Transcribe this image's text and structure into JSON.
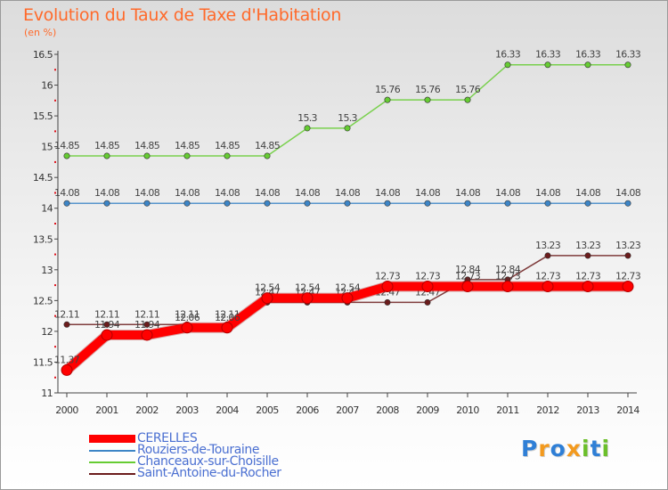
{
  "chart_data": {
    "type": "line",
    "title": "Evolution du Taux de Taxe d'Habitation",
    "subtitle": "(en %)",
    "xlabel": "",
    "ylabel": "(en %)",
    "ylim": [
      11,
      16.5
    ],
    "y_ticks": [
      "11",
      "11.5",
      "12",
      "12.5",
      "13",
      "13.5",
      "14",
      "14.5",
      "15",
      "15.5",
      "16",
      "16.5"
    ],
    "x": [
      "2000",
      "2001",
      "2002",
      "2003",
      "2004",
      "2005",
      "2006",
      "2007",
      "2008",
      "2009",
      "2010",
      "2011",
      "2012",
      "2013",
      "2014"
    ],
    "grid": false,
    "legend_position": "bottom-left",
    "series": [
      {
        "name": "CERELLES",
        "color": "#ff0000",
        "values": [
          11.37,
          11.94,
          11.94,
          12.06,
          12.06,
          12.54,
          12.54,
          12.54,
          12.73,
          12.73,
          12.73,
          12.73,
          12.73,
          12.73,
          12.73
        ],
        "labels": [
          "11.37",
          "11.94",
          "11.94",
          "12.06",
          "12.06",
          "12.54",
          "12.54",
          "12.54",
          "12.73",
          "12.73",
          "12.73",
          "12.73",
          "12.73",
          "12.73",
          "12.73"
        ]
      },
      {
        "name": "Rouziers-de-Touraine",
        "color": "#3d85c6",
        "values": [
          14.08,
          14.08,
          14.08,
          14.08,
          14.08,
          14.08,
          14.08,
          14.08,
          14.08,
          14.08,
          14.08,
          14.08,
          14.08,
          14.08,
          14.08
        ],
        "labels": [
          "14.08",
          "14.08",
          "14.08",
          "14.08",
          "14.08",
          "14.08",
          "14.08",
          "14.08",
          "14.08",
          "14.08",
          "14.08",
          "14.08",
          "14.08",
          "14.08",
          "14.08"
        ]
      },
      {
        "name": "Chanceaux-sur-Choisille",
        "color": "#66cc33",
        "values": [
          14.85,
          14.85,
          14.85,
          14.85,
          14.85,
          14.85,
          15.3,
          15.3,
          15.76,
          15.76,
          15.76,
          16.33,
          16.33,
          16.33,
          16.33
        ],
        "labels": [
          "14.85",
          "14.85",
          "14.85",
          "14.85",
          "14.85",
          "14.85",
          "15.3",
          "15.3",
          "15.76",
          "15.76",
          "15.76",
          "16.33",
          "16.33",
          "16.33",
          "16.33"
        ]
      },
      {
        "name": "Saint-Antoine-du-Rocher",
        "color": "#6b1c1c",
        "values": [
          12.11,
          12.11,
          12.11,
          12.11,
          12.11,
          12.47,
          12.47,
          12.47,
          12.47,
          12.47,
          12.84,
          12.84,
          13.23,
          13.23,
          13.23
        ],
        "labels": [
          "12.11",
          "12.11",
          "12.11",
          "12.11",
          "12.11",
          "12.47",
          "12.47",
          "12.47",
          "12.47",
          "12.47",
          "12.84",
          "12.84",
          "13.23",
          "13.23",
          "13.23"
        ]
      }
    ]
  },
  "logo": {
    "letters": [
      "P",
      "r",
      "o",
      "x",
      "i",
      "t",
      "i"
    ],
    "colors": [
      "#2f7fd6",
      "#f39a1e",
      "#2f7fd6",
      "#f39a1e",
      "#6bbf2a",
      "#2f7fd6",
      "#6bbf2a"
    ]
  }
}
